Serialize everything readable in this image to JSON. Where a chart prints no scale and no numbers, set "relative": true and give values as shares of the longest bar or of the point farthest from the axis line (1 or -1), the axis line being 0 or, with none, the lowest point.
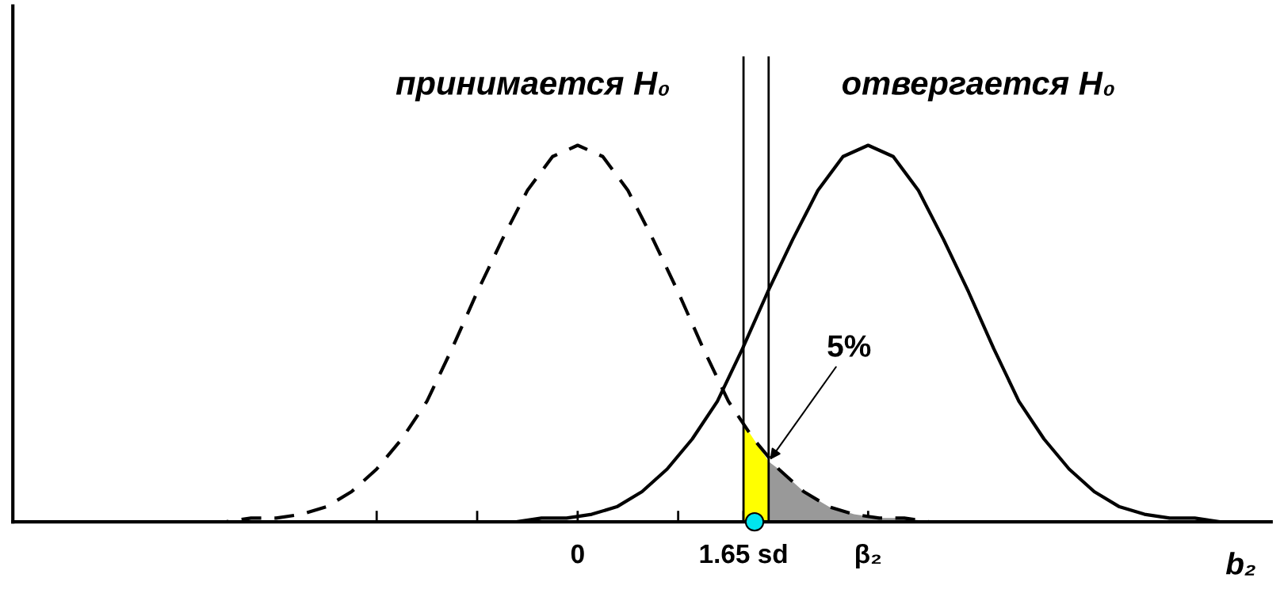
{
  "chart_data": {
    "type": "line",
    "relative": true,
    "xlabel": "b₂",
    "xlim": [
      -5.62,
      6.9
    ],
    "xticks": [
      {
        "value": -2,
        "label": null
      },
      {
        "value": -1,
        "label": null
      },
      {
        "value": 0,
        "label": "0"
      },
      {
        "value": 1,
        "label": null
      },
      {
        "value": 1.65,
        "label": "1.65 sd"
      },
      {
        "value": 2.89,
        "label": "β₂"
      }
    ],
    "series": [
      {
        "color": "#000000",
        "line_style": "dashed",
        "x": [
          -4,
          -3.75,
          -3.5,
          -3.25,
          -3,
          -2.75,
          -2.5,
          -2.25,
          -2,
          -1.75,
          -1.5,
          -1.25,
          -1,
          -0.75,
          -0.5,
          -0.25,
          0,
          0.25,
          0.5,
          0.75,
          1,
          1.25,
          1.5,
          1.75,
          2,
          2.25,
          2.5,
          2.75,
          3,
          3.25,
          3.5,
          3.75,
          4
        ],
        "values": [
          0,
          0,
          0,
          0.01,
          0.01,
          0.02,
          0.04,
          0.08,
          0.14,
          0.22,
          0.32,
          0.46,
          0.61,
          0.75,
          0.88,
          0.97,
          1,
          0.97,
          0.88,
          0.75,
          0.61,
          0.46,
          0.32,
          0.22,
          0.14,
          0.08,
          0.04,
          0.02,
          0.01,
          0.01,
          0,
          0,
          0
        ]
      },
      {
        "color": "#000000",
        "line_style": "solid",
        "x": [
          -1.11,
          -0.86,
          -0.61,
          -0.36,
          -0.11,
          0.14,
          0.39,
          0.64,
          0.89,
          1.14,
          1.39,
          1.64,
          1.89,
          2.14,
          2.39,
          2.64,
          2.89,
          3.14,
          3.39,
          3.64,
          3.89,
          4.14,
          4.39,
          4.64,
          4.89,
          5.14,
          5.39,
          5.64,
          5.89,
          6.14,
          6.39,
          6.64,
          6.89
        ],
        "values": [
          0,
          0,
          0,
          0.01,
          0.01,
          0.02,
          0.04,
          0.08,
          0.14,
          0.22,
          0.32,
          0.46,
          0.61,
          0.75,
          0.88,
          0.97,
          1,
          0.97,
          0.88,
          0.75,
          0.61,
          0.46,
          0.32,
          0.22,
          0.14,
          0.08,
          0.04,
          0.02,
          0.01,
          0.01,
          0,
          0,
          0
        ]
      },
      {
        "type": "area",
        "color": "#ffff00",
        "x": [
          1.65,
          1.75,
          1.9
        ],
        "values": [
          0.26,
          0.22,
          0.16
        ]
      },
      {
        "type": "area",
        "color": "#999999",
        "x": [
          1.9,
          2,
          2.25,
          2.5,
          2.75,
          3,
          3.25,
          3.5
        ],
        "values": [
          0.16,
          0.14,
          0.08,
          0.04,
          0.02,
          0.01,
          0.01,
          0
        ]
      },
      {
        "type": "scatter",
        "color": "#00e5ee",
        "marker": "circle",
        "x": [
          1.76
        ],
        "values": [
          0
        ]
      }
    ],
    "ref_lines": [
      {
        "axis": "x",
        "value": 1.65,
        "color": "#000000"
      },
      {
        "axis": "x",
        "value": 1.9,
        "color": "#000000"
      }
    ],
    "annotations": [
      "принимается H₀",
      "отвергается H₀",
      {
        "text": "5%",
        "x": 1.9,
        "y": 0.16
      }
    ],
    "grid": false,
    "legend": false
  }
}
